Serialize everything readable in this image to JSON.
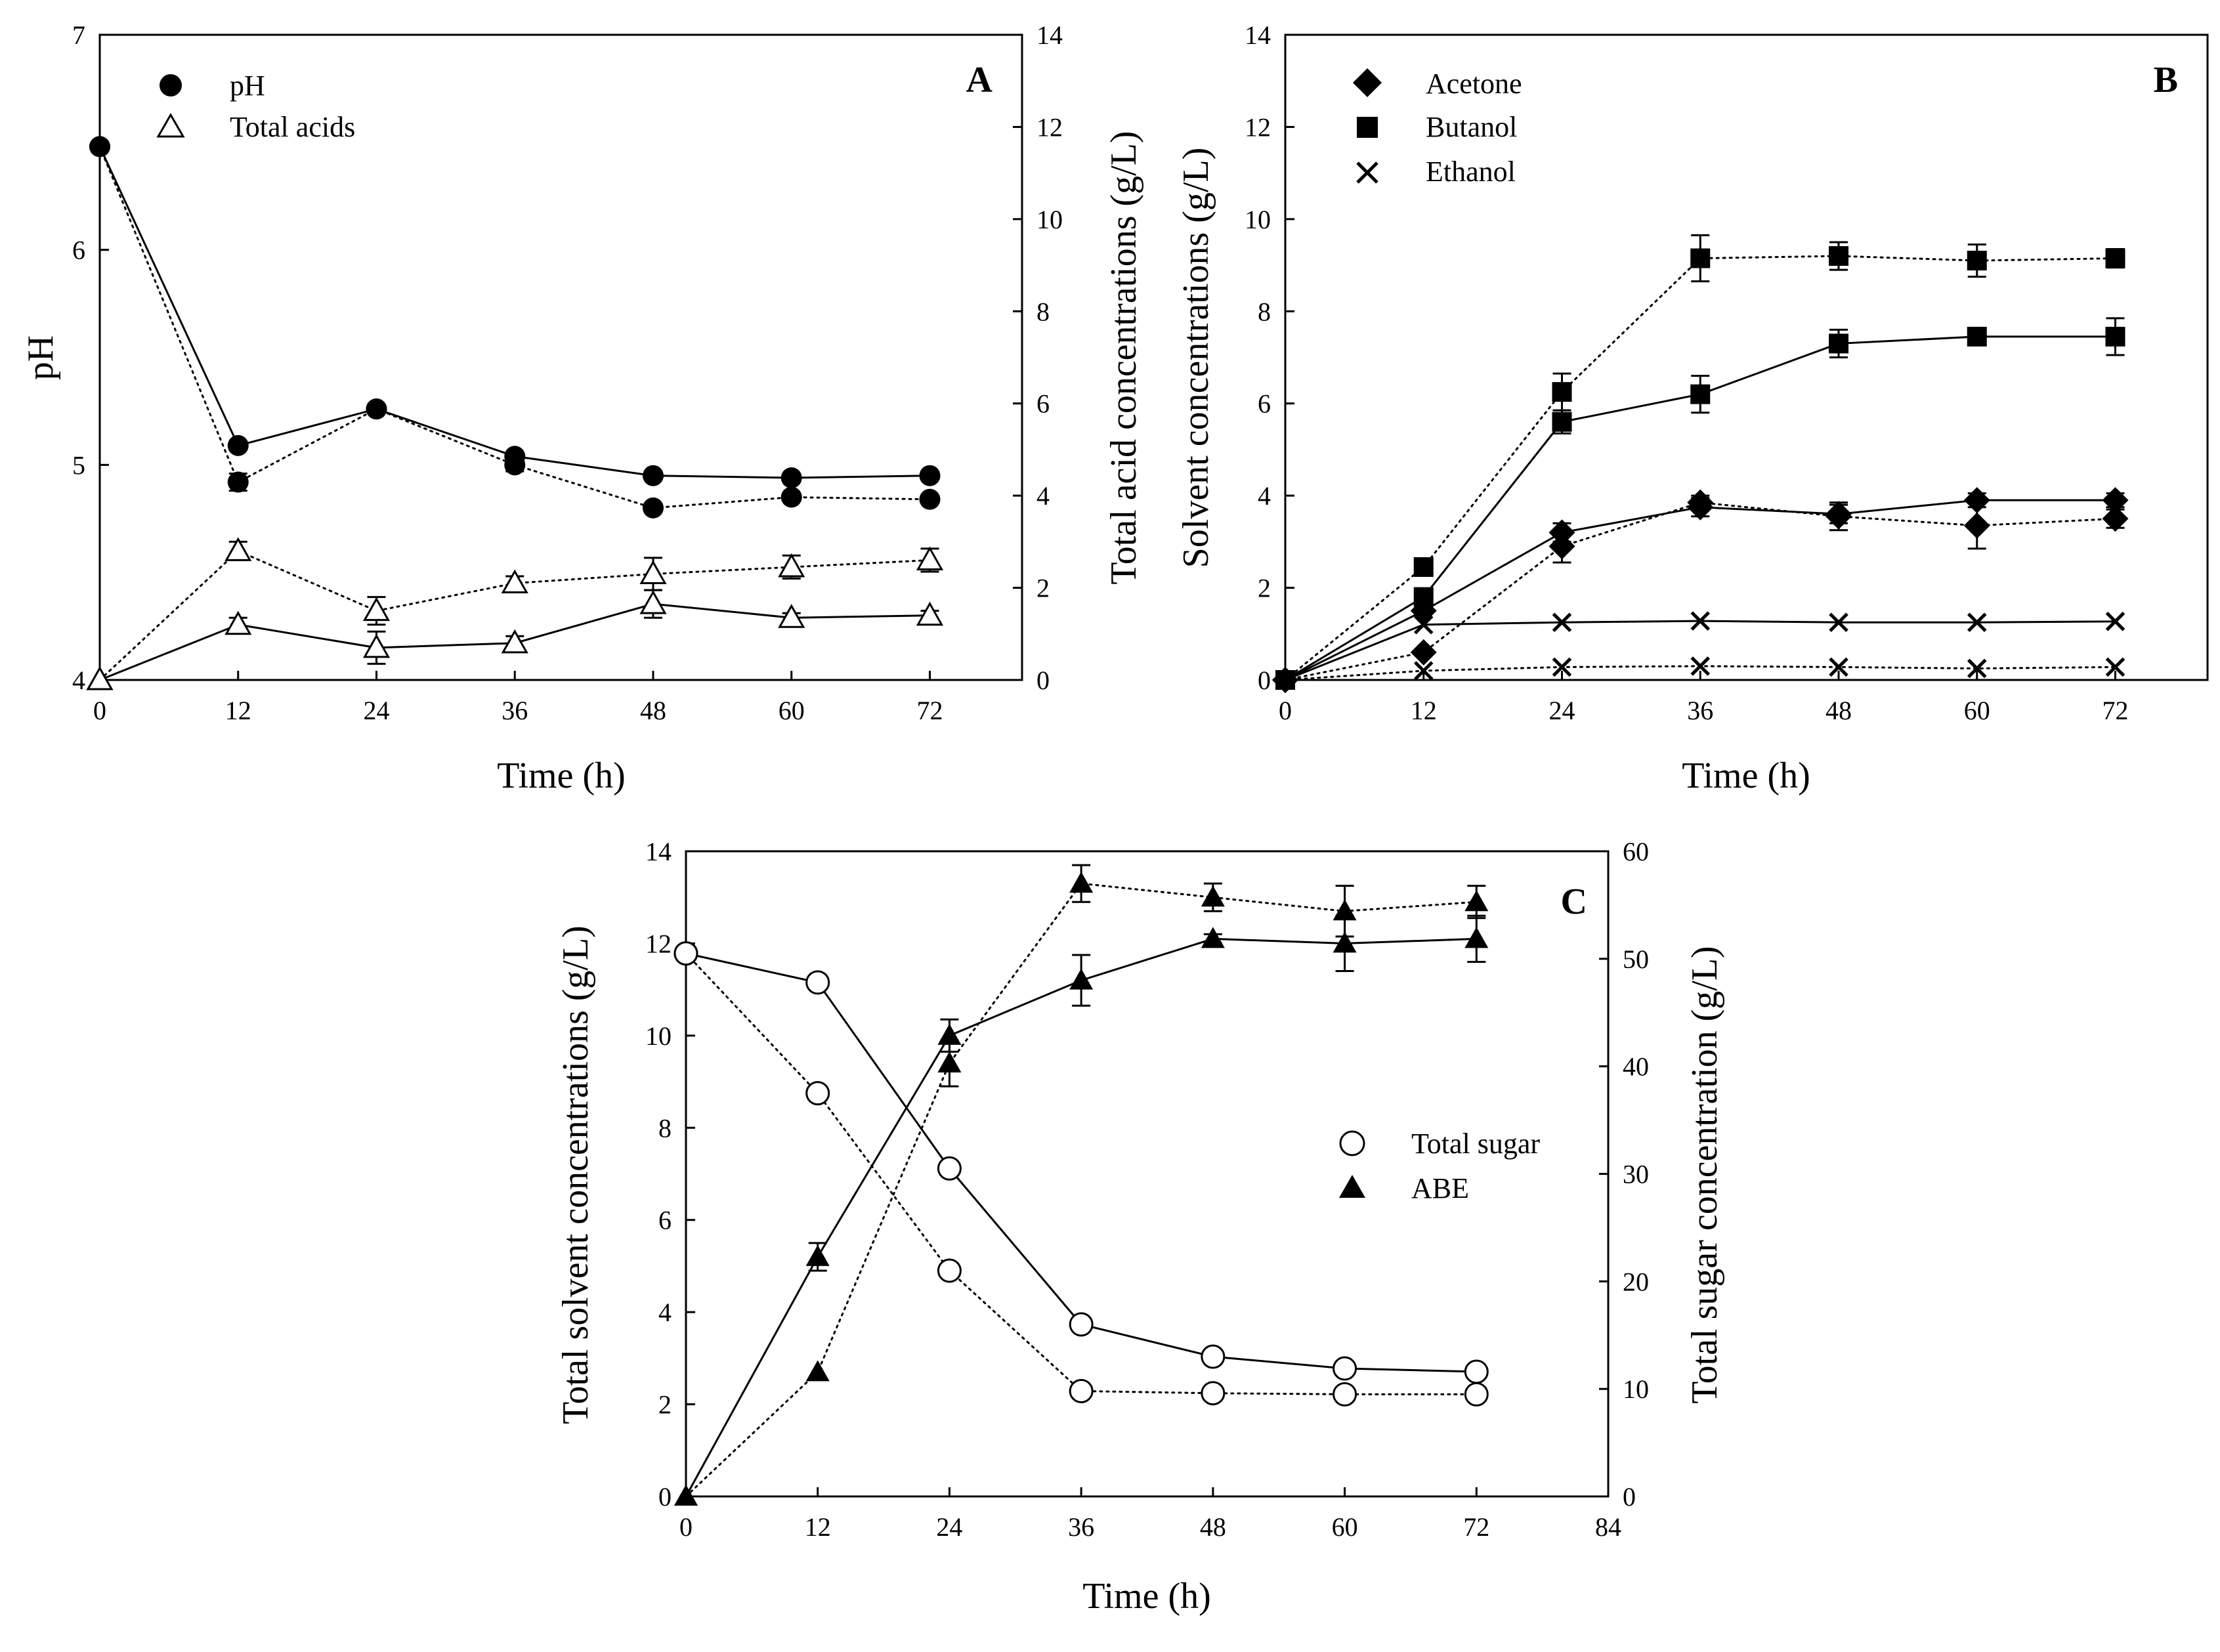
{
  "chart_data": [
    {
      "panel": "A",
      "type": "line",
      "panel_label": "A",
      "xlabel": "Time (h)",
      "ylabel": "pH",
      "ylabel_right": "Total acid concentrations (g/L)",
      "x_ticks": [
        0,
        12,
        24,
        36,
        48,
        60,
        72
      ],
      "y_ticks": [
        4,
        5,
        6,
        7
      ],
      "y_ticks_right": [
        0,
        2,
        4,
        6,
        8,
        10,
        12,
        14
      ],
      "xlim": [
        0,
        80
      ],
      "ylim": [
        4,
        7
      ],
      "ylim_right": [
        0,
        14
      ],
      "legend": [
        "pH",
        "Total acids"
      ],
      "series": [
        {
          "name": "pH",
          "axis": "left",
          "marker": "circle-filled",
          "line": "solid",
          "x": [
            0,
            12,
            24,
            36,
            48,
            60,
            72
          ],
          "values": [
            6.48,
            5.09,
            5.26,
            5.04,
            4.95,
            4.94,
            4.95
          ]
        },
        {
          "name": "pH",
          "axis": "left",
          "marker": "circle-filled",
          "line": "dotted",
          "x": [
            0,
            12,
            24,
            36,
            48,
            60,
            72
          ],
          "values": [
            6.48,
            4.92,
            5.26,
            5.0,
            4.8,
            4.85,
            4.84
          ],
          "err": [
            0,
            0.04,
            0,
            0.03,
            0,
            0,
            0
          ]
        },
        {
          "name": "Total acids",
          "axis": "right",
          "marker": "triangle-open",
          "line": "dotted",
          "x": [
            0,
            12,
            24,
            36,
            48,
            60,
            72
          ],
          "values": [
            0,
            2.8,
            1.5,
            2.1,
            2.3,
            2.45,
            2.6
          ],
          "err": [
            0,
            0.2,
            0.3,
            0.15,
            0.35,
            0.25,
            0.25
          ]
        },
        {
          "name": "Total acids",
          "axis": "right",
          "marker": "triangle-open",
          "line": "solid",
          "x": [
            0,
            12,
            24,
            36,
            48,
            60,
            72
          ],
          "values": [
            0,
            1.2,
            0.7,
            0.8,
            1.65,
            1.35,
            1.4
          ],
          "err": [
            0,
            0.15,
            0.35,
            0.15,
            0.3,
            0.1,
            0.1
          ]
        }
      ]
    },
    {
      "panel": "B",
      "type": "line",
      "panel_label": "B",
      "xlabel": "Time (h)",
      "ylabel": "Solvent concentrations (g/L)",
      "x_ticks": [
        0,
        12,
        24,
        36,
        48,
        60,
        72
      ],
      "y_ticks": [
        0,
        2,
        4,
        6,
        8,
        10,
        12,
        14
      ],
      "xlim": [
        0,
        80
      ],
      "ylim": [
        0,
        14
      ],
      "legend": [
        "Acetone",
        "Butanol",
        "Ethanol"
      ],
      "series": [
        {
          "name": "Acetone",
          "marker": "diamond",
          "line": "solid",
          "x": [
            0,
            12,
            24,
            36,
            48,
            60,
            72
          ],
          "values": [
            0,
            1.5,
            3.2,
            3.75,
            3.6,
            3.9,
            3.9
          ],
          "err": [
            0,
            0,
            0.2,
            0.2,
            0.2,
            0.15,
            0.15
          ]
        },
        {
          "name": "Acetone",
          "marker": "diamond",
          "line": "dotted",
          "x": [
            0,
            12,
            24,
            36,
            48,
            60,
            72
          ],
          "values": [
            0,
            0.6,
            2.9,
            3.85,
            3.55,
            3.35,
            3.5
          ],
          "err": [
            0,
            0,
            0.35,
            0.15,
            0.3,
            0.5,
            0.2
          ]
        },
        {
          "name": "Butanol",
          "marker": "square",
          "line": "solid",
          "x": [
            0,
            12,
            24,
            36,
            48,
            60,
            72
          ],
          "values": [
            0,
            1.8,
            5.6,
            6.2,
            7.3,
            7.45,
            7.45
          ],
          "err": [
            0,
            0,
            0.25,
            0.4,
            0.3,
            0.05,
            0.4
          ]
        },
        {
          "name": "Butanol",
          "marker": "square",
          "line": "dotted",
          "x": [
            0,
            12,
            24,
            36,
            48,
            60,
            72
          ],
          "values": [
            0,
            2.45,
            6.25,
            9.15,
            9.2,
            9.1,
            9.15
          ],
          "err": [
            0,
            0,
            0.4,
            0.5,
            0.3,
            0.35,
            0.2
          ]
        },
        {
          "name": "Ethanol",
          "marker": "cross",
          "line": "solid",
          "x": [
            0,
            12,
            24,
            36,
            48,
            60,
            72
          ],
          "values": [
            0,
            1.2,
            1.25,
            1.28,
            1.25,
            1.25,
            1.27
          ]
        },
        {
          "name": "Ethanol",
          "marker": "cross",
          "line": "dotted",
          "x": [
            0,
            12,
            24,
            36,
            48,
            60,
            72
          ],
          "values": [
            0,
            0.2,
            0.28,
            0.3,
            0.28,
            0.25,
            0.28
          ]
        }
      ]
    },
    {
      "panel": "C",
      "type": "line",
      "panel_label": "C",
      "xlabel": "Time (h)",
      "ylabel": "Total solvent concentrations (g/L)",
      "ylabel_right": "Total sugar concentration (g/L)",
      "x_ticks": [
        0,
        12,
        24,
        36,
        48,
        60,
        72,
        84
      ],
      "y_ticks": [
        0,
        2,
        4,
        6,
        8,
        10,
        12,
        14
      ],
      "y_ticks_right": [
        0,
        10,
        20,
        30,
        40,
        50,
        60
      ],
      "xlim": [
        0,
        84
      ],
      "ylim": [
        0,
        14
      ],
      "ylim_right": [
        0,
        60
      ],
      "legend": [
        "Total sugar",
        "ABE"
      ],
      "series": [
        {
          "name": "Total sugar",
          "axis": "right",
          "marker": "circle-open",
          "line": "solid",
          "x": [
            0,
            12,
            24,
            36,
            48,
            60,
            72
          ],
          "values": [
            50.5,
            47.8,
            30.5,
            16,
            13,
            11.9,
            11.6
          ]
        },
        {
          "name": "Total sugar",
          "axis": "right",
          "marker": "circle-open",
          "line": "dotted",
          "x": [
            0,
            12,
            24,
            36,
            48,
            60,
            72
          ],
          "values": [
            50.5,
            37.5,
            21,
            9.8,
            9.6,
            9.5,
            9.5
          ]
        },
        {
          "name": "ABE",
          "axis": "left",
          "marker": "triangle-filled",
          "line": "solid",
          "x": [
            0,
            12,
            24,
            36,
            48,
            60,
            72
          ],
          "values": [
            0,
            5.2,
            10.0,
            11.2,
            12.1,
            12.0,
            12.1
          ],
          "err": [
            0,
            0.3,
            0.35,
            0.55,
            0.1,
            0.6,
            0.5
          ]
        },
        {
          "name": "ABE",
          "axis": "left",
          "marker": "triangle-filled",
          "line": "dotted",
          "x": [
            0,
            12,
            24,
            36,
            48,
            60,
            72
          ],
          "values": [
            0,
            2.7,
            9.4,
            13.3,
            13.0,
            12.7,
            12.9
          ],
          "err": [
            0,
            0,
            0.5,
            0.4,
            0.3,
            0.55,
            0.35
          ]
        }
      ]
    }
  ]
}
